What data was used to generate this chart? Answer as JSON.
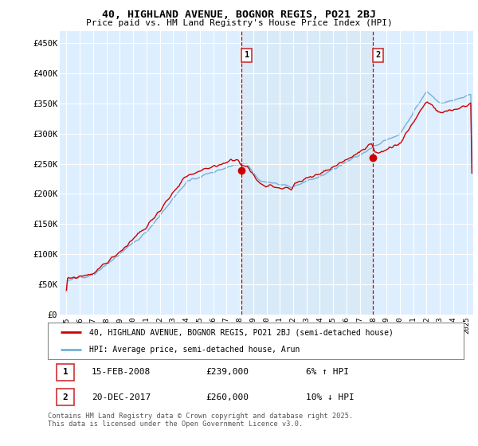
{
  "title": "40, HIGHLAND AVENUE, BOGNOR REGIS, PO21 2BJ",
  "subtitle": "Price paid vs. HM Land Registry's House Price Index (HPI)",
  "ylabel_ticks": [
    "£0",
    "£50K",
    "£100K",
    "£150K",
    "£200K",
    "£250K",
    "£300K",
    "£350K",
    "£400K",
    "£450K"
  ],
  "ytick_values": [
    0,
    50000,
    100000,
    150000,
    200000,
    250000,
    300000,
    350000,
    400000,
    450000
  ],
  "ylim": [
    0,
    470000
  ],
  "xlim_start": 1994.5,
  "xlim_end": 2025.5,
  "sale1_x": 2008.12,
  "sale1_y": 239000,
  "sale2_x": 2017.97,
  "sale2_y": 260000,
  "sale1_date": "15-FEB-2008",
  "sale1_price": "£239,000",
  "sale1_pct": "6% ↑ HPI",
  "sale2_date": "20-DEC-2017",
  "sale2_price": "£260,000",
  "sale2_pct": "10% ↓ HPI",
  "legend_line1": "40, HIGHLAND AVENUE, BOGNOR REGIS, PO21 2BJ (semi-detached house)",
  "legend_line2": "HPI: Average price, semi-detached house, Arun",
  "footer": "Contains HM Land Registry data © Crown copyright and database right 2025.\nThis data is licensed under the Open Government Licence v3.0.",
  "line_color_red": "#cc0000",
  "line_color_blue": "#7ab0d4",
  "shade_color": "#d8eaf7",
  "plot_bg": "#ddeeff",
  "grid_color": "#ffffff"
}
